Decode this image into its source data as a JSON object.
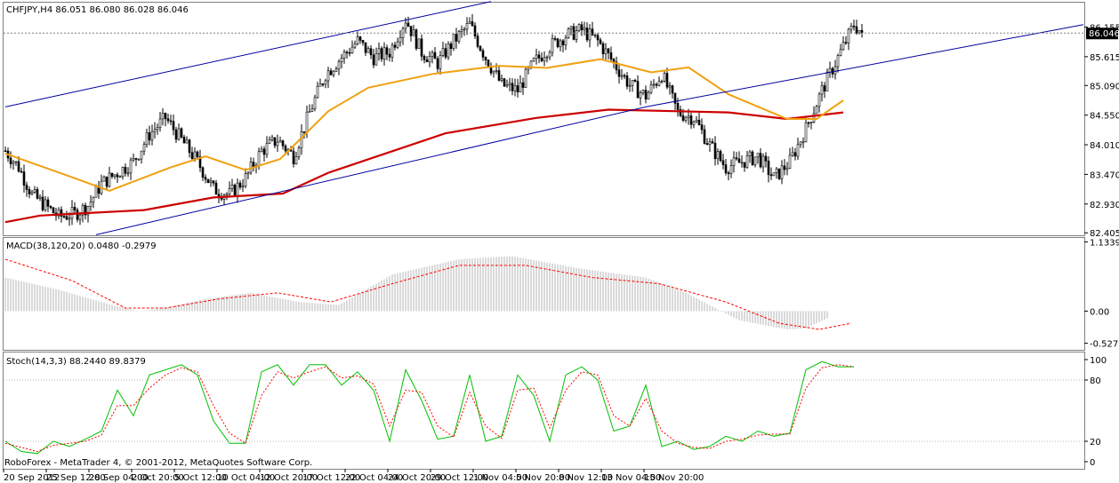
{
  "header": {
    "title": "CHFJPY,H4  86.051 86.080 86.028 86.046",
    "copyright": "RoboForex - MetaTrader 4, © 2001-2012, MetaQuotes Software Corp."
  },
  "colors": {
    "background": "#ffffff",
    "candle": "#000000",
    "ma_fast": "#f0a010",
    "ma_slow": "#cc0000",
    "channel": "#0000a0",
    "macd_hist": "#b4b4b4",
    "macd_signal": "#ff0000",
    "stoch_main": "#00c000",
    "stoch_signal": "#ff0000",
    "grid": "#808080",
    "current_price_bg": "#000000",
    "current_price_fg": "#ffffff"
  },
  "chart_data": [
    {
      "panel": "price",
      "type": "candlestick",
      "symbol": "CHFJPY",
      "timeframe": "H4",
      "ohlc": {
        "open": 86.051,
        "high": 86.08,
        "low": 86.028,
        "close": 86.046
      },
      "current_price": "86.046",
      "y_ticks": [
        "86.155",
        "85.615",
        "85.090",
        "84.550",
        "84.010",
        "83.470",
        "82.930",
        "82.405"
      ],
      "ylim": [
        82.36,
        86.6
      ],
      "anchors": [
        [
          0,
          83.9
        ],
        [
          5,
          83.6
        ],
        [
          10,
          83.1
        ],
        [
          15,
          82.9
        ],
        [
          20,
          82.7
        ],
        [
          26,
          82.75
        ],
        [
          31,
          82.9
        ],
        [
          36,
          83.3
        ],
        [
          42,
          83.5
        ],
        [
          48,
          83.7
        ],
        [
          54,
          84.2
        ],
        [
          60,
          84.5
        ],
        [
          66,
          84.1
        ],
        [
          72,
          83.7
        ],
        [
          78,
          83.2
        ],
        [
          84,
          83.1
        ],
        [
          90,
          83.4
        ],
        [
          96,
          83.9
        ],
        [
          102,
          84.1
        ],
        [
          108,
          83.8
        ],
        [
          114,
          84.6
        ],
        [
          120,
          85.3
        ],
        [
          126,
          85.6
        ],
        [
          132,
          85.9
        ],
        [
          138,
          85.6
        ],
        [
          144,
          85.7
        ],
        [
          150,
          86.3
        ],
        [
          156,
          85.7
        ],
        [
          162,
          85.5
        ],
        [
          168,
          85.9
        ],
        [
          174,
          86.2
        ],
        [
          180,
          85.6
        ],
        [
          186,
          85.1
        ],
        [
          192,
          85.0
        ],
        [
          198,
          85.5
        ],
        [
          204,
          85.8
        ],
        [
          210,
          86.0
        ],
        [
          216,
          86.1
        ],
        [
          222,
          85.9
        ],
        [
          228,
          85.5
        ],
        [
          234,
          85.1
        ],
        [
          240,
          84.9
        ],
        [
          246,
          85.3
        ],
        [
          252,
          84.6
        ],
        [
          258,
          84.5
        ],
        [
          264,
          84.0
        ],
        [
          270,
          83.6
        ],
        [
          276,
          83.7
        ],
        [
          282,
          83.8
        ],
        [
          288,
          83.4
        ],
        [
          294,
          83.7
        ],
        [
          300,
          84.3
        ],
        [
          306,
          85.0
        ],
        [
          312,
          85.6
        ],
        [
          318,
          86.2
        ],
        [
          321,
          86.05
        ]
      ],
      "ma_fast": [
        [
          0,
          83.85
        ],
        [
          26,
          83.4
        ],
        [
          39,
          83.17
        ],
        [
          62,
          83.6
        ],
        [
          75,
          83.8
        ],
        [
          90,
          83.55
        ],
        [
          103,
          83.75
        ],
        [
          121,
          84.62
        ],
        [
          136,
          85.05
        ],
        [
          160,
          85.3
        ],
        [
          185,
          85.45
        ],
        [
          203,
          85.41
        ],
        [
          223,
          85.57
        ],
        [
          242,
          85.33
        ],
        [
          256,
          85.42
        ],
        [
          271,
          84.93
        ],
        [
          293,
          84.48
        ],
        [
          304,
          84.48
        ],
        [
          314,
          84.82
        ]
      ],
      "ma_slow": [
        [
          0,
          82.6
        ],
        [
          13,
          82.72
        ],
        [
          52,
          82.82
        ],
        [
          78,
          83.05
        ],
        [
          104,
          83.12
        ],
        [
          121,
          83.5
        ],
        [
          165,
          84.22
        ],
        [
          199,
          84.5
        ],
        [
          226,
          84.65
        ],
        [
          271,
          84.6
        ],
        [
          293,
          84.48
        ],
        [
          314,
          84.6
        ]
      ],
      "channel_lines": [
        {
          "from": [
            0,
            84.7
          ],
          "to": [
            182,
            86.62
          ]
        },
        {
          "from": [
            34,
            82.37
          ],
          "to": [
            240,
            84.7
          ]
        },
        {
          "from": [
            240,
            84.7
          ],
          "to": [
            404,
            86.2
          ]
        }
      ]
    },
    {
      "panel": "macd",
      "type": "bar",
      "title": "MACD(38,120,20) 0.0480 -0.2979",
      "y_ticks": [
        "1.1339",
        "0.00",
        "-0.527"
      ],
      "ylim": [
        -0.62,
        1.17
      ],
      "histogram": [
        [
          0,
          0.55
        ],
        [
          20,
          0.35
        ],
        [
          40,
          0.1
        ],
        [
          50,
          0.0
        ],
        [
          60,
          0.05
        ],
        [
          75,
          0.2
        ],
        [
          92,
          0.3
        ],
        [
          110,
          0.15
        ],
        [
          125,
          0.1
        ],
        [
          145,
          0.6
        ],
        [
          170,
          0.85
        ],
        [
          190,
          0.9
        ],
        [
          215,
          0.7
        ],
        [
          240,
          0.55
        ],
        [
          255,
          0.3
        ],
        [
          275,
          -0.15
        ],
        [
          293,
          -0.3
        ],
        [
          300,
          -0.28
        ],
        [
          308,
          -0.12
        ]
      ],
      "signal": [
        [
          0,
          0.85
        ],
        [
          25,
          0.5
        ],
        [
          45,
          0.05
        ],
        [
          60,
          0.05
        ],
        [
          80,
          0.2
        ],
        [
          102,
          0.3
        ],
        [
          122,
          0.15
        ],
        [
          145,
          0.45
        ],
        [
          170,
          0.75
        ],
        [
          195,
          0.75
        ],
        [
          220,
          0.55
        ],
        [
          245,
          0.45
        ],
        [
          270,
          0.15
        ],
        [
          290,
          -0.2
        ],
        [
          305,
          -0.3
        ],
        [
          317,
          -0.2
        ]
      ]
    },
    {
      "panel": "stochastic",
      "type": "line",
      "title": "Stoch(14,3,3) 88.2440 89.8379",
      "y_ticks": [
        "100",
        "80",
        "20",
        "0"
      ],
      "ylim": [
        0,
        100
      ],
      "main": [
        [
          0,
          20
        ],
        [
          6,
          10
        ],
        [
          12,
          8
        ],
        [
          18,
          20
        ],
        [
          24,
          15
        ],
        [
          30,
          22
        ],
        [
          36,
          30
        ],
        [
          42,
          70
        ],
        [
          48,
          45
        ],
        [
          54,
          85
        ],
        [
          60,
          90
        ],
        [
          66,
          95
        ],
        [
          72,
          85
        ],
        [
          78,
          40
        ],
        [
          84,
          18
        ],
        [
          90,
          18
        ],
        [
          96,
          88
        ],
        [
          102,
          95
        ],
        [
          108,
          75
        ],
        [
          114,
          95
        ],
        [
          120,
          95
        ],
        [
          126,
          75
        ],
        [
          132,
          88
        ],
        [
          138,
          70
        ],
        [
          144,
          20
        ],
        [
          150,
          90
        ],
        [
          156,
          60
        ],
        [
          162,
          22
        ],
        [
          168,
          25
        ],
        [
          174,
          85
        ],
        [
          180,
          20
        ],
        [
          186,
          25
        ],
        [
          192,
          85
        ],
        [
          198,
          65
        ],
        [
          204,
          20
        ],
        [
          210,
          85
        ],
        [
          216,
          93
        ],
        [
          222,
          80
        ],
        [
          228,
          30
        ],
        [
          234,
          35
        ],
        [
          240,
          75
        ],
        [
          246,
          15
        ],
        [
          252,
          20
        ],
        [
          258,
          12
        ],
        [
          264,
          15
        ],
        [
          270,
          25
        ],
        [
          276,
          20
        ],
        [
          282,
          30
        ],
        [
          288,
          25
        ],
        [
          294,
          28
        ],
        [
          300,
          90
        ],
        [
          306,
          98
        ],
        [
          312,
          93
        ],
        [
          318,
          93
        ]
      ],
      "signal": [
        [
          0,
          18
        ],
        [
          6,
          14
        ],
        [
          12,
          10
        ],
        [
          18,
          16
        ],
        [
          24,
          18
        ],
        [
          30,
          20
        ],
        [
          36,
          26
        ],
        [
          42,
          55
        ],
        [
          48,
          55
        ],
        [
          54,
          72
        ],
        [
          60,
          85
        ],
        [
          66,
          92
        ],
        [
          72,
          88
        ],
        [
          78,
          55
        ],
        [
          84,
          28
        ],
        [
          90,
          18
        ],
        [
          96,
          65
        ],
        [
          102,
          88
        ],
        [
          108,
          82
        ],
        [
          114,
          88
        ],
        [
          120,
          93
        ],
        [
          126,
          82
        ],
        [
          132,
          84
        ],
        [
          138,
          76
        ],
        [
          144,
          35
        ],
        [
          150,
          70
        ],
        [
          156,
          68
        ],
        [
          162,
          35
        ],
        [
          168,
          24
        ],
        [
          174,
          68
        ],
        [
          180,
          35
        ],
        [
          186,
          23
        ],
        [
          192,
          70
        ],
        [
          198,
          72
        ],
        [
          204,
          33
        ],
        [
          210,
          70
        ],
        [
          216,
          88
        ],
        [
          222,
          85
        ],
        [
          228,
          45
        ],
        [
          234,
          35
        ],
        [
          240,
          62
        ],
        [
          246,
          30
        ],
        [
          252,
          18
        ],
        [
          258,
          14
        ],
        [
          264,
          13
        ],
        [
          270,
          20
        ],
        [
          276,
          22
        ],
        [
          282,
          26
        ],
        [
          288,
          27
        ],
        [
          294,
          27
        ],
        [
          300,
          72
        ],
        [
          306,
          92
        ],
        [
          312,
          95
        ],
        [
          318,
          93
        ]
      ]
    }
  ],
  "x_axis": {
    "labels": [
      "20 Sep 2012",
      "25 Sep 12:00",
      "28 Sep 04:00",
      "2 Oct 20:00",
      "5 Oct 12:00",
      "10 Oct 04:00",
      "12 Oct 20:00",
      "17 Oct 12:00",
      "22 Oct 04:00",
      "24 Oct 20:00",
      "29 Oct 12:00",
      "1 Nov 04:00",
      "5 Nov 20:00",
      "8 Nov 12:00",
      "13 Nov 04:00",
      "15 Nov 20:00"
    ],
    "label_bars": [
      0,
      16,
      32,
      48,
      64,
      80,
      96,
      112,
      128,
      144,
      160,
      176,
      192,
      208,
      224,
      240
    ]
  }
}
